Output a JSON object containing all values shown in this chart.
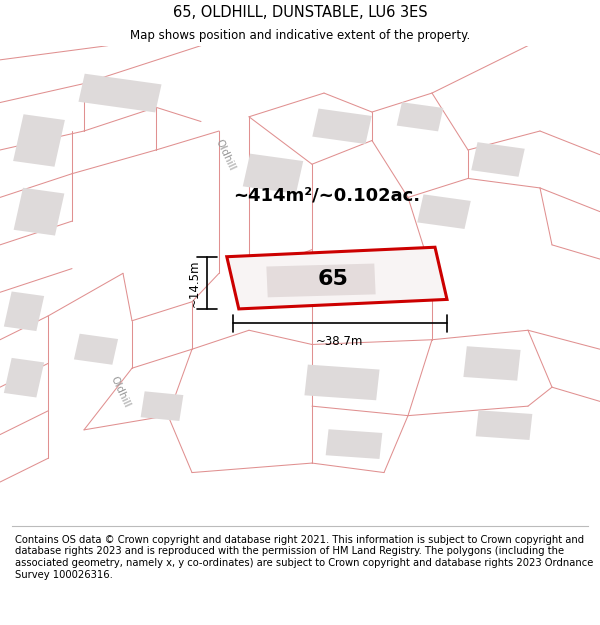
{
  "title": "65, OLDHILL, DUNSTABLE, LU6 3ES",
  "subtitle": "Map shows position and indicative extent of the property.",
  "footer": "Contains OS data © Crown copyright and database right 2021. This information is subject to Crown copyright and database rights 2023 and is reproduced with the permission of HM Land Registry. The polygons (including the associated geometry, namely x, y co-ordinates) are subject to Crown copyright and database rights 2023 Ordnance Survey 100026316.",
  "map_bg": "#f2f0f0",
  "road_color": "#ffffff",
  "plot_line_color": "#e09090",
  "building_color": "#dedada",
  "highlight_color": "#cc0000",
  "highlight_fill": "#f8f4f4",
  "area_text": "~414m²/~0.102ac.",
  "width_text": "~38.7m",
  "height_text": "~14.5m",
  "number_text": "65",
  "title_fontsize": 10.5,
  "subtitle_fontsize": 8.5,
  "footer_fontsize": 7.2,
  "area_fontsize": 13,
  "number_fontsize": 16,
  "dim_fontsize": 8.5
}
